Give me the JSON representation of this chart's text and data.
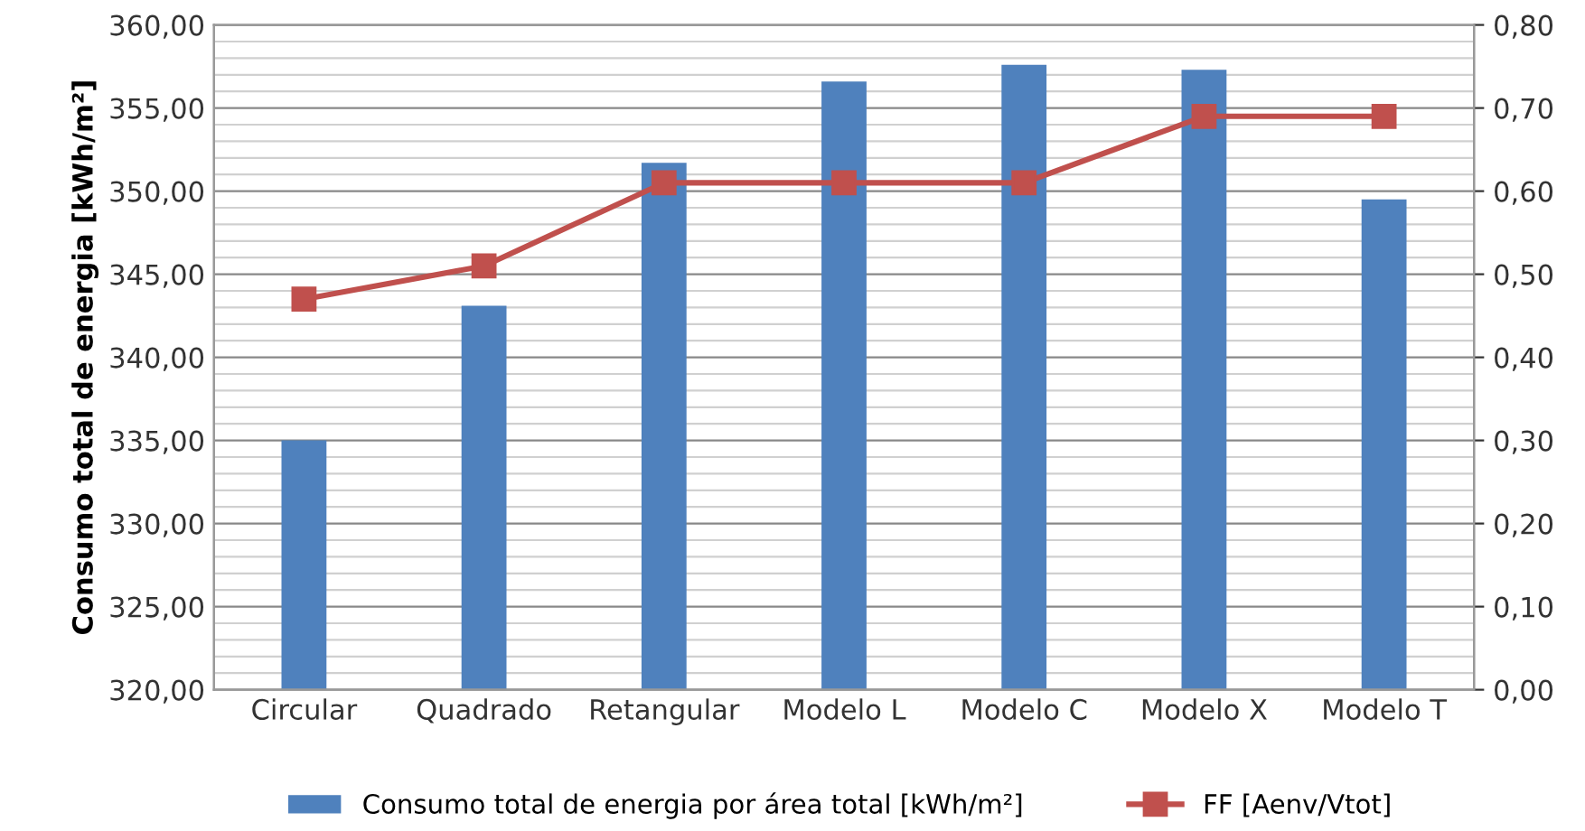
{
  "chart_data": {
    "type": "bar",
    "ylabel": "Consumo total de energia [kWh/m²]",
    "categories": [
      "Circular",
      "Quadrado",
      "Retangular",
      "Modelo L",
      "Modelo C",
      "Modelo X",
      "Modelo T"
    ],
    "series": [
      {
        "name": "Consumo total de energia por área total [kWh/m²]",
        "color": "#4f81bd",
        "values": [
          335.0,
          343.1,
          351.7,
          356.6,
          357.6,
          357.3,
          349.5
        ]
      },
      {
        "name": "FF [Aenv/Vtot]",
        "type": "line",
        "axis": "y2",
        "color": "#c0504d",
        "marker": "square",
        "values": [
          0.47,
          0.51,
          0.61,
          0.61,
          0.61,
          0.69,
          0.69
        ]
      }
    ],
    "ylim": [
      320,
      360
    ],
    "yticks": [
      {
        "value": 320,
        "label": "320,00"
      },
      {
        "value": 321,
        "label": null
      },
      {
        "value": 322,
        "label": null
      },
      {
        "value": 323,
        "label": null
      },
      {
        "value": 324,
        "label": null
      },
      {
        "value": 325,
        "label": "325,00"
      },
      {
        "value": 326,
        "label": null
      },
      {
        "value": 327,
        "label": null
      },
      {
        "value": 328,
        "label": null
      },
      {
        "value": 329,
        "label": null
      },
      {
        "value": 330,
        "label": "330,00"
      },
      {
        "value": 331,
        "label": null
      },
      {
        "value": 332,
        "label": null
      },
      {
        "value": 333,
        "label": null
      },
      {
        "value": 334,
        "label": null
      },
      {
        "value": 335,
        "label": "335,00"
      },
      {
        "value": 336,
        "label": null
      },
      {
        "value": 337,
        "label": null
      },
      {
        "value": 338,
        "label": null
      },
      {
        "value": 339,
        "label": null
      },
      {
        "value": 340,
        "label": "340,00"
      },
      {
        "value": 341,
        "label": null
      },
      {
        "value": 342,
        "label": null
      },
      {
        "value": 343,
        "label": null
      },
      {
        "value": 344,
        "label": null
      },
      {
        "value": 345,
        "label": "345,00"
      },
      {
        "value": 346,
        "label": null
      },
      {
        "value": 347,
        "label": null
      },
      {
        "value": 348,
        "label": null
      },
      {
        "value": 349,
        "label": null
      },
      {
        "value": 350,
        "label": "350,00"
      },
      {
        "value": 351,
        "label": null
      },
      {
        "value": 352,
        "label": null
      },
      {
        "value": 353,
        "label": null
      },
      {
        "value": 354,
        "label": null
      },
      {
        "value": 355,
        "label": "355,00"
      },
      {
        "value": 356,
        "label": null
      },
      {
        "value": 357,
        "label": null
      },
      {
        "value": 358,
        "label": null
      },
      {
        "value": 359,
        "label": null
      },
      {
        "value": 360,
        "label": "360,00"
      }
    ],
    "y2lim": [
      0,
      0.8
    ],
    "y2ticks": [
      {
        "value": 0,
        "label": "0,00"
      },
      {
        "value": 0.1,
        "label": "0,10"
      },
      {
        "value": 0.2,
        "label": "0,20"
      },
      {
        "value": 0.3,
        "label": "0,30"
      },
      {
        "value": 0.4,
        "label": "0,40"
      },
      {
        "value": 0.5,
        "label": "0,50"
      },
      {
        "value": 0.6,
        "label": "0,60"
      },
      {
        "value": 0.7,
        "label": "0,70"
      },
      {
        "value": 0.8,
        "label": "0,80"
      }
    ],
    "grid": "y",
    "legend": "bottom"
  }
}
